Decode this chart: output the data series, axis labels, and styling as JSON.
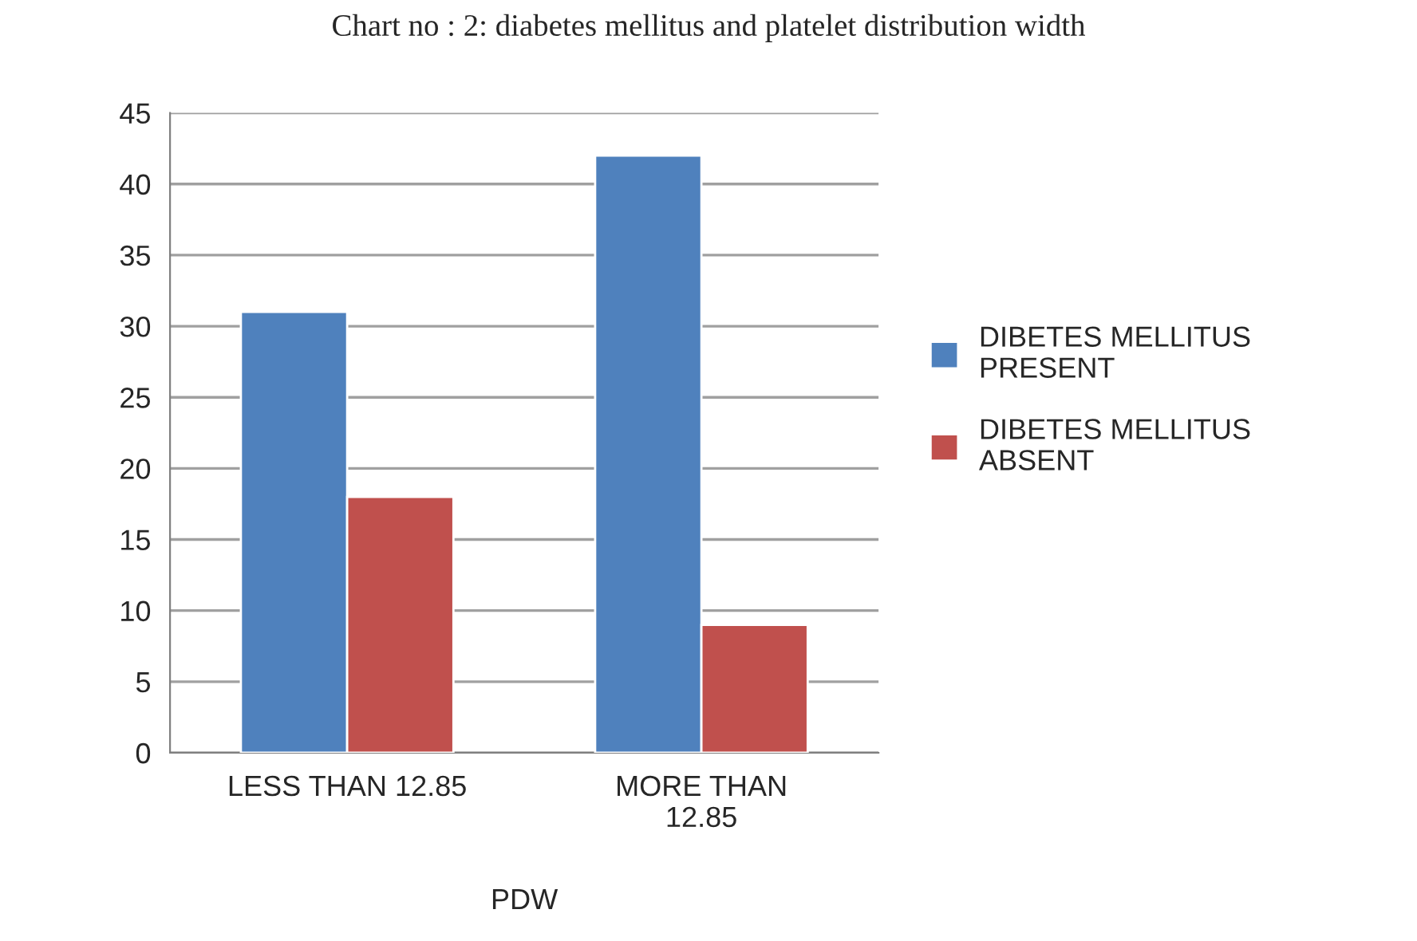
{
  "chart_data": {
    "type": "bar",
    "title": "Chart no : 2: diabetes mellitus and platelet distribution width",
    "xlabel": "PDW",
    "categories": [
      "LESS THAN 12.85",
      "MORE THAN\n12.85"
    ],
    "series": [
      {
        "name": "DIBETES MELLITUS\nPRESENT",
        "color": "#4f81bd",
        "values": [
          31,
          42
        ]
      },
      {
        "name": "DIBETES MELLITUS\nABSENT",
        "color": "#c0504d",
        "values": [
          18,
          9
        ]
      }
    ],
    "ylim": [
      0,
      45
    ],
    "yticks": [
      0,
      5,
      10,
      15,
      20,
      25,
      30,
      35,
      40,
      45
    ],
    "grid": "y",
    "legend": "right"
  }
}
